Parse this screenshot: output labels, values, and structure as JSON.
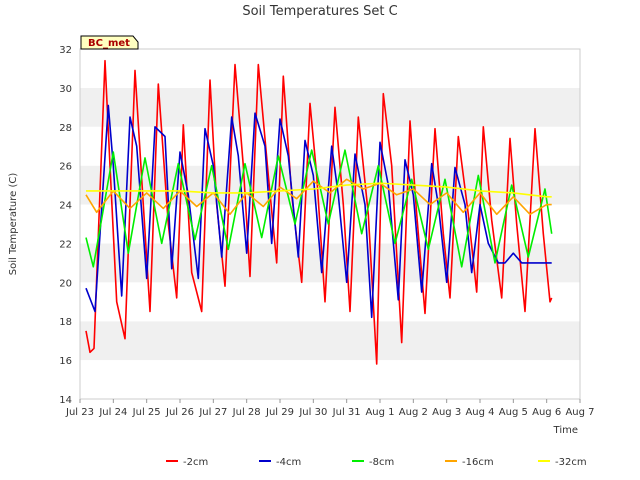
{
  "chart_data": {
    "type": "line",
    "title": "Soil Temperatures Set C",
    "xlabel": "Time",
    "ylabel": "Soil Temperature (C)",
    "station_label": "BC_met",
    "ylim": [
      14,
      32
    ],
    "yticks": [
      14,
      16,
      18,
      20,
      22,
      24,
      26,
      28,
      30,
      32
    ],
    "xlim": [
      0,
      15
    ],
    "xtick_labels": [
      "Jul 23",
      "Jul 24",
      "Jul 25",
      "Jul 26",
      "Jul 27",
      "Jul 28",
      "Jul 29",
      "Jul 30",
      "Jul 31",
      "Aug 1",
      "Aug 2",
      "Aug 3",
      "Aug 4",
      "Aug 5",
      "Aug 6",
      "Aug 7"
    ],
    "grid": "horizontal alternating bands",
    "legend_position": "bottom",
    "x_units": "days since Jul 23",
    "series": [
      {
        "name": "-2cm",
        "color": "#ff0000",
        "x": [
          0.18,
          0.3,
          0.42,
          0.75,
          0.9,
          1.1,
          1.35,
          1.65,
          1.9,
          2.1,
          2.35,
          2.65,
          2.9,
          3.1,
          3.35,
          3.65,
          3.9,
          4.1,
          4.35,
          4.65,
          4.9,
          5.1,
          5.35,
          5.65,
          5.9,
          6.1,
          6.35,
          6.65,
          6.9,
          7.1,
          7.35,
          7.65,
          7.9,
          8.1,
          8.35,
          8.65,
          8.9,
          9.1,
          9.35,
          9.65,
          9.9,
          10.1,
          10.35,
          10.65,
          10.9,
          11.1,
          11.35,
          11.65,
          11.9,
          12.1,
          12.35,
          12.65,
          12.9,
          13.1,
          13.35,
          13.65,
          13.9,
          14.1,
          14.15
        ],
        "y": [
          17.5,
          16.4,
          16.6,
          31.4,
          26.0,
          19.0,
          17.1,
          30.9,
          24.0,
          18.5,
          30.2,
          23.0,
          19.2,
          28.1,
          20.5,
          18.5,
          30.4,
          24.0,
          19.8,
          31.2,
          26.0,
          20.3,
          31.2,
          25.5,
          21.0,
          30.6,
          24.5,
          20.0,
          29.2,
          25.5,
          19.0,
          29.0,
          24.0,
          18.5,
          28.5,
          23.5,
          15.8,
          29.7,
          26.0,
          16.9,
          28.3,
          23.5,
          18.4,
          27.9,
          22.5,
          19.2,
          27.5,
          23.5,
          19.5,
          28.0,
          23.2,
          19.2,
          27.4,
          23.0,
          18.5,
          27.9,
          22.5,
          19.0,
          19.2
        ]
      },
      {
        "name": "-4cm",
        "color": "#0000cc",
        "x": [
          0.18,
          0.45,
          0.85,
          1.0,
          1.25,
          1.5,
          1.7,
          2.0,
          2.25,
          2.55,
          2.75,
          3.0,
          3.25,
          3.55,
          3.75,
          4.0,
          4.25,
          4.55,
          4.75,
          5.0,
          5.25,
          5.55,
          5.75,
          6.0,
          6.25,
          6.55,
          6.75,
          7.0,
          7.25,
          7.55,
          7.75,
          8.0,
          8.25,
          8.55,
          8.75,
          9.0,
          9.25,
          9.55,
          9.75,
          10.0,
          10.25,
          10.55,
          10.75,
          11.0,
          11.25,
          11.55,
          11.75,
          12.0,
          12.25,
          12.55,
          12.75,
          13.0,
          13.25,
          13.55,
          13.75,
          14.0,
          14.15
        ],
        "y": [
          19.7,
          18.5,
          29.1,
          26.0,
          19.3,
          28.5,
          27.0,
          20.2,
          28.0,
          27.5,
          20.7,
          26.7,
          24.5,
          20.2,
          27.9,
          26.0,
          21.3,
          28.5,
          26.5,
          21.5,
          28.7,
          27.0,
          22.0,
          28.4,
          26.5,
          21.3,
          27.3,
          25.5,
          20.5,
          27.0,
          24.5,
          20.0,
          26.6,
          24.0,
          18.2,
          27.2,
          25.0,
          19.1,
          26.3,
          24.5,
          19.5,
          26.1,
          24.0,
          20.0,
          25.9,
          24.0,
          20.5,
          24.0,
          22.0,
          21.0,
          21.0,
          21.5,
          21.0,
          21.0,
          21.0,
          21.0,
          21.0
        ]
      },
      {
        "name": "-8cm",
        "color": "#00ee00",
        "x": [
          0.18,
          0.4,
          1.0,
          1.45,
          1.95,
          2.45,
          2.95,
          3.45,
          3.95,
          4.45,
          4.95,
          5.45,
          5.95,
          6.45,
          6.95,
          7.45,
          7.95,
          8.45,
          8.95,
          9.45,
          9.95,
          10.45,
          10.95,
          11.45,
          11.95,
          12.45,
          12.95,
          13.45,
          13.95,
          14.15
        ],
        "y": [
          22.3,
          20.8,
          26.7,
          21.5,
          26.4,
          22.0,
          26.1,
          22.2,
          26.0,
          21.7,
          26.1,
          22.3,
          26.5,
          23.0,
          26.8,
          23.0,
          26.8,
          22.5,
          26.0,
          22.0,
          25.3,
          21.7,
          25.3,
          20.8,
          25.5,
          21.0,
          25.0,
          21.3,
          24.8,
          22.5
        ]
      },
      {
        "name": "-16cm",
        "color": "#ffa500",
        "x": [
          0.18,
          0.5,
          1.0,
          1.5,
          2.0,
          2.5,
          3.0,
          3.5,
          4.0,
          4.5,
          5.0,
          5.5,
          6.0,
          6.5,
          7.0,
          7.5,
          8.0,
          8.5,
          9.0,
          9.5,
          10.0,
          10.5,
          11.0,
          11.5,
          12.0,
          12.5,
          13.0,
          13.5,
          14.0,
          14.15
        ],
        "y": [
          24.5,
          23.6,
          24.7,
          23.8,
          24.6,
          23.8,
          24.7,
          23.9,
          24.6,
          23.5,
          24.6,
          23.9,
          24.9,
          24.3,
          25.2,
          24.6,
          25.3,
          24.8,
          25.1,
          24.5,
          24.8,
          24.0,
          24.6,
          23.6,
          24.6,
          23.5,
          24.4,
          23.5,
          24.0,
          24.0
        ]
      },
      {
        "name": "-32cm",
        "color": "#ffff00",
        "x": [
          0.18,
          1.0,
          2.0,
          3.0,
          4.0,
          5.0,
          6.0,
          7.0,
          8.0,
          9.0,
          10.0,
          11.0,
          12.0,
          13.0,
          14.0,
          14.15
        ],
        "y": [
          24.7,
          24.7,
          24.7,
          24.7,
          24.6,
          24.6,
          24.7,
          24.8,
          25.0,
          25.1,
          25.0,
          24.9,
          24.7,
          24.6,
          24.4,
          24.4
        ]
      }
    ]
  }
}
